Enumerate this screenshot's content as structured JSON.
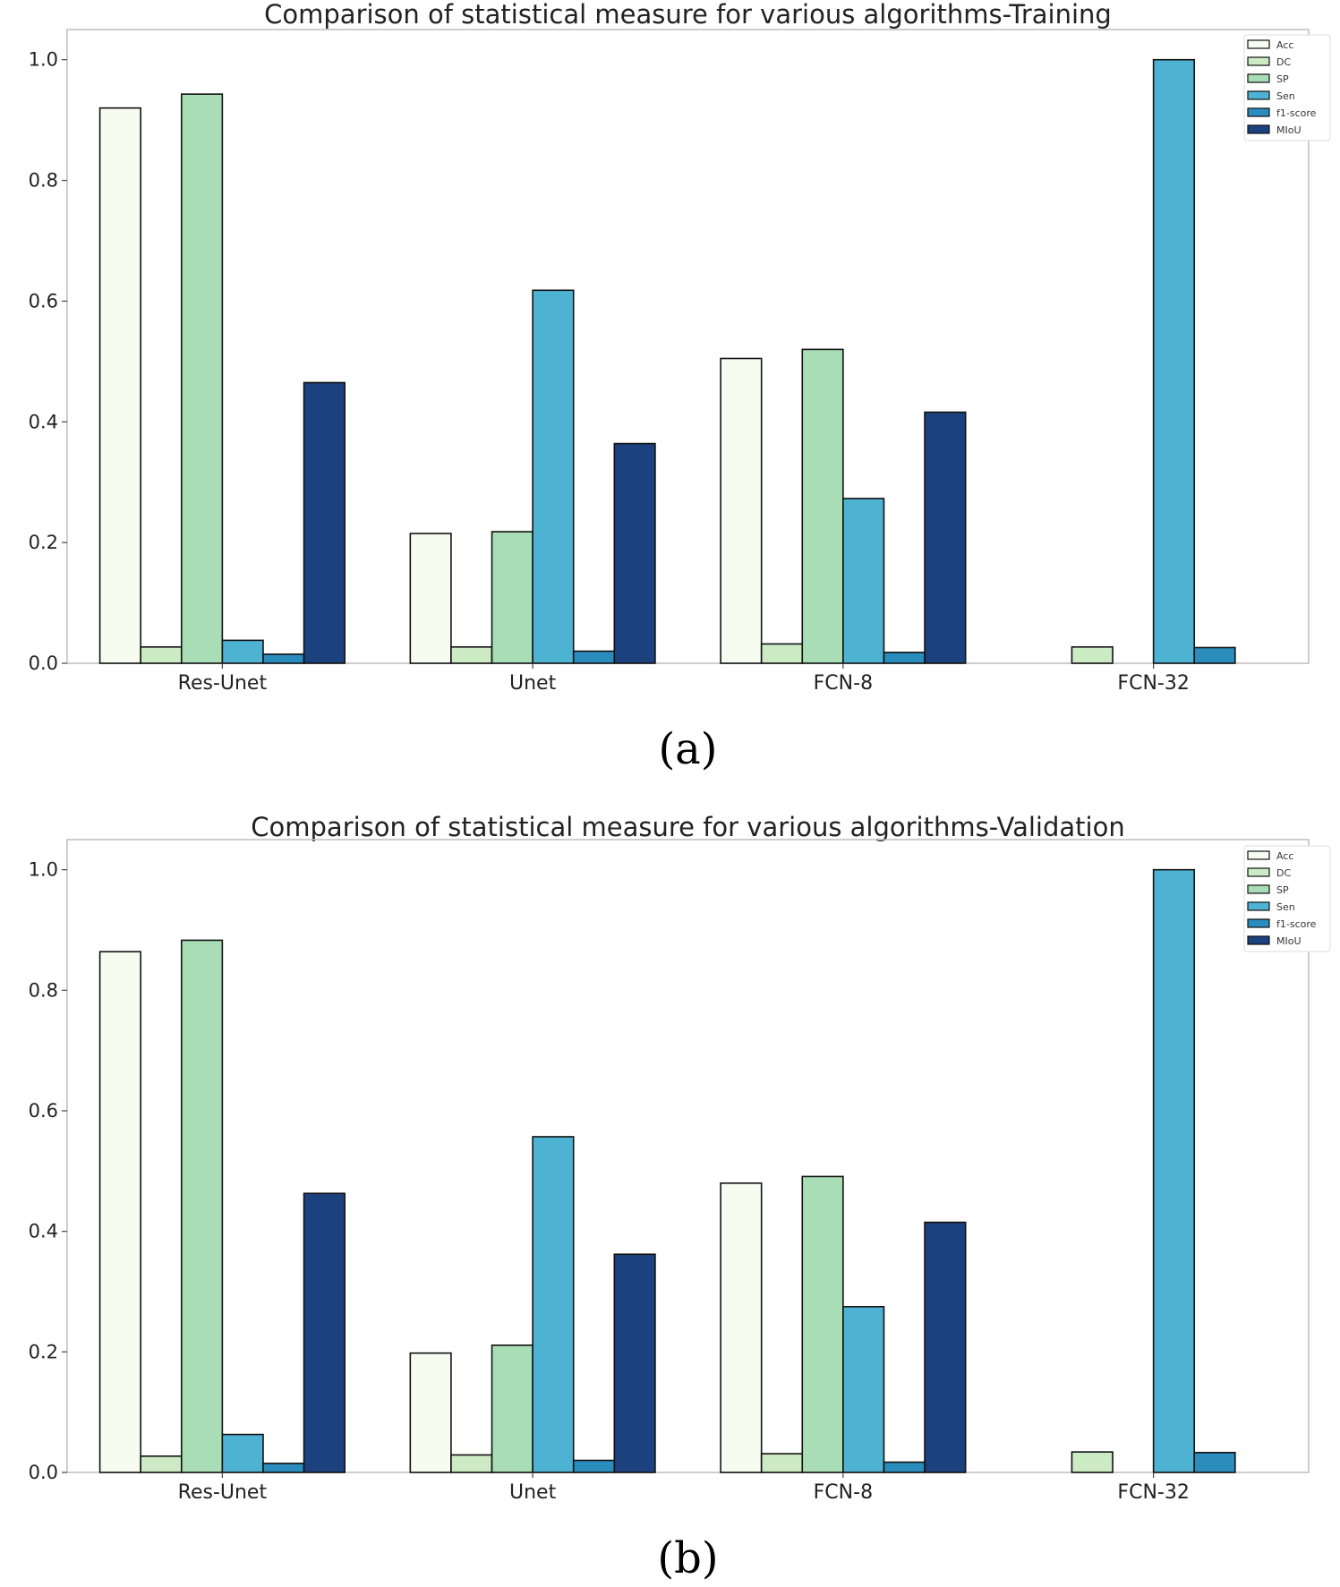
{
  "chart_data": [
    {
      "type": "bar",
      "title": "Comparison of statistical measure for various algorithms-Training",
      "caption": "(a)",
      "categories": [
        "Res-Unet",
        "Unet",
        "FCN-8",
        "FCN-32"
      ],
      "ylim": [
        0,
        1.05
      ],
      "yticks": [
        "0.0",
        "0.2",
        "0.4",
        "0.6",
        "0.8",
        "1.0"
      ],
      "legend_position": "top-right",
      "series": [
        {
          "name": "Acc",
          "color": "#f7fcf0",
          "values": [
            0.92,
            0.215,
            0.505,
            0.0
          ]
        },
        {
          "name": "DC",
          "color": "#ccebc5",
          "values": [
            0.027,
            0.027,
            0.032,
            0.027
          ]
        },
        {
          "name": "SP",
          "color": "#a8ddb5",
          "values": [
            0.943,
            0.218,
            0.52,
            0.0
          ]
        },
        {
          "name": "Sen",
          "color": "#4eb3d3",
          "values": [
            0.038,
            0.618,
            0.273,
            1.0
          ]
        },
        {
          "name": "f1-score",
          "color": "#2b8cbe",
          "values": [
            0.015,
            0.02,
            0.018,
            0.026
          ]
        },
        {
          "name": "MIoU",
          "color": "#1c417f",
          "values": [
            0.465,
            0.364,
            0.416,
            0.0
          ]
        }
      ]
    },
    {
      "type": "bar",
      "title": "Comparison of statistical measure for various algorithms-Validation",
      "caption": "(b)",
      "categories": [
        "Res-Unet",
        "Unet",
        "FCN-8",
        "FCN-32"
      ],
      "ylim": [
        0,
        1.05
      ],
      "yticks": [
        "0.0",
        "0.2",
        "0.4",
        "0.6",
        "0.8",
        "1.0"
      ],
      "legend_position": "top-right",
      "series": [
        {
          "name": "Acc",
          "color": "#f7fcf0",
          "values": [
            0.864,
            0.198,
            0.48,
            0.0
          ]
        },
        {
          "name": "DC",
          "color": "#ccebc5",
          "values": [
            0.027,
            0.029,
            0.031,
            0.034
          ]
        },
        {
          "name": "SP",
          "color": "#a8ddb5",
          "values": [
            0.883,
            0.211,
            0.491,
            0.0
          ]
        },
        {
          "name": "Sen",
          "color": "#4eb3d3",
          "values": [
            0.063,
            0.557,
            0.275,
            1.0
          ]
        },
        {
          "name": "f1-score",
          "color": "#2b8cbe",
          "values": [
            0.015,
            0.02,
            0.017,
            0.033
          ]
        },
        {
          "name": "MIoU",
          "color": "#1c417f",
          "values": [
            0.463,
            0.362,
            0.415,
            0.0
          ]
        }
      ]
    }
  ]
}
